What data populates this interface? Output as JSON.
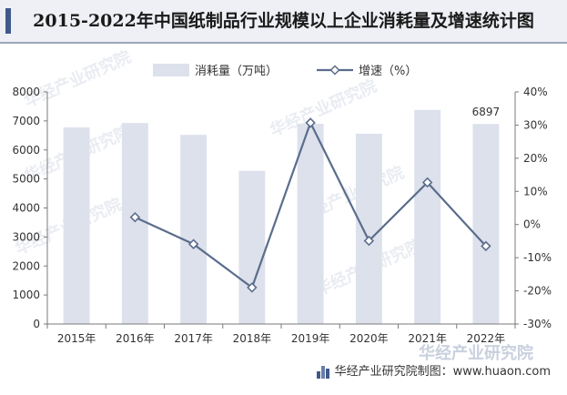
{
  "page": {
    "title": "2015-2022年中国纸制品行业规模以上企业消耗量及增速统计图",
    "footer": "华经产业研究院制图：www.huaon.com",
    "watermark": "华经产业研究院"
  },
  "colors": {
    "bar": "#dde1ec",
    "line": "#5b6d8c",
    "axis_text": "#333333",
    "title_bg": "#eef0f5",
    "accent": "#3f5a8a"
  },
  "chart_data": {
    "type": "bar",
    "categories": [
      "2015年",
      "2016年",
      "2017年",
      "2018年",
      "2019年",
      "2020年",
      "2021年",
      "2022年"
    ],
    "series": [
      {
        "name": "消耗量（万吨）",
        "type": "bar",
        "axis": "left",
        "values": [
          6780,
          6930,
          6520,
          5280,
          6900,
          6560,
          7380,
          6897
        ]
      },
      {
        "name": "增速（%）",
        "type": "line",
        "axis": "right",
        "values": [
          null,
          2.2,
          -5.9,
          -19.0,
          30.7,
          -4.9,
          12.7,
          -6.5
        ]
      }
    ],
    "data_labels": [
      {
        "category": "2022年",
        "text": "6897"
      }
    ],
    "y_left": {
      "ylim": [
        0,
        8000
      ],
      "ticks": [
        "0",
        "1000",
        "2000",
        "3000",
        "4000",
        "5000",
        "6000",
        "7000",
        "8000"
      ]
    },
    "y_right": {
      "ylim": [
        -30,
        40
      ],
      "ticks": [
        "-30%",
        "-20%",
        "-10%",
        "0%",
        "10%",
        "20%",
        "30%",
        "40%"
      ]
    },
    "legend_position": "top-center",
    "grid": false
  }
}
